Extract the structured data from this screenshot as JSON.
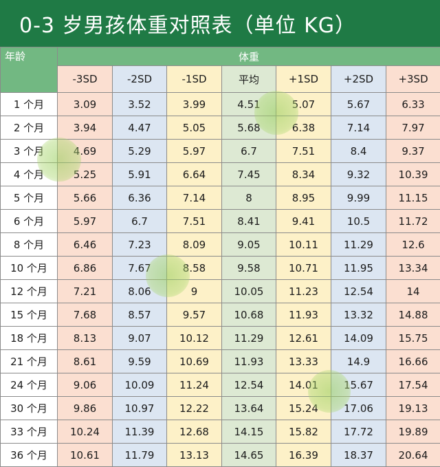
{
  "title": "0-3 岁男孩体重对照表（单位 KG）",
  "header": {
    "age": "年龄",
    "weight": "体重",
    "sd_columns": [
      "-3SD",
      "-2SD",
      "-1SD",
      "平均",
      "+1SD",
      "+2SD",
      "+3SD"
    ]
  },
  "rows": [
    {
      "age": "1 个月",
      "values": [
        "3.09",
        "3.52",
        "3.99",
        "4.51",
        "5.07",
        "5.67",
        "6.33"
      ]
    },
    {
      "age": "2 个月",
      "values": [
        "3.94",
        "4.47",
        "5.05",
        "5.68",
        "6.38",
        "7.14",
        "7.97"
      ]
    },
    {
      "age": "3 个月",
      "values": [
        "4.69",
        "5.29",
        "5.97",
        "6.7",
        "7.51",
        "8.4",
        "9.37"
      ]
    },
    {
      "age": "4 个月",
      "values": [
        "5.25",
        "5.91",
        "6.64",
        "7.45",
        "8.34",
        "9.32",
        "10.39"
      ]
    },
    {
      "age": "5 个月",
      "values": [
        "5.66",
        "6.36",
        "7.14",
        "8",
        "8.95",
        "9.99",
        "11.15"
      ]
    },
    {
      "age": "6 个月",
      "values": [
        "5.97",
        "6.7",
        "7.51",
        "8.41",
        "9.41",
        "10.5",
        "11.72"
      ]
    },
    {
      "age": "8 个月",
      "values": [
        "6.46",
        "7.23",
        "8.09",
        "9.05",
        "10.11",
        "11.29",
        "12.6"
      ]
    },
    {
      "age": "10 个月",
      "values": [
        "6.86",
        "7.67",
        "8.58",
        "9.58",
        "10.71",
        "11.95",
        "13.34"
      ]
    },
    {
      "age": "12 个月",
      "values": [
        "7.21",
        "8.06",
        "9",
        "10.05",
        "11.23",
        "12.54",
        "14"
      ]
    },
    {
      "age": "15 个月",
      "values": [
        "7.68",
        "8.57",
        "9.57",
        "10.68",
        "11.93",
        "13.32",
        "14.88"
      ]
    },
    {
      "age": "18 个月",
      "values": [
        "8.13",
        "9.07",
        "10.12",
        "11.29",
        "12.61",
        "14.09",
        "15.75"
      ]
    },
    {
      "age": "21 个月",
      "values": [
        "8.61",
        "9.59",
        "10.69",
        "11.93",
        "13.33",
        "14.9",
        "16.66"
      ]
    },
    {
      "age": "24 个月",
      "values": [
        "9.06",
        "10.09",
        "11.24",
        "12.54",
        "14.01",
        "15.67",
        "17.54"
      ]
    },
    {
      "age": "30 个月",
      "values": [
        "9.86",
        "10.97",
        "12.22",
        "13.64",
        "15.24",
        "17.06",
        "19.13"
      ]
    },
    {
      "age": "33 个月",
      "values": [
        "10.24",
        "11.39",
        "12.68",
        "14.15",
        "15.82",
        "17.72",
        "19.89"
      ]
    },
    {
      "age": "36 个月",
      "values": [
        "10.61",
        "11.79",
        "13.13",
        "14.65",
        "16.39",
        "18.37",
        "20.64"
      ]
    }
  ]
}
